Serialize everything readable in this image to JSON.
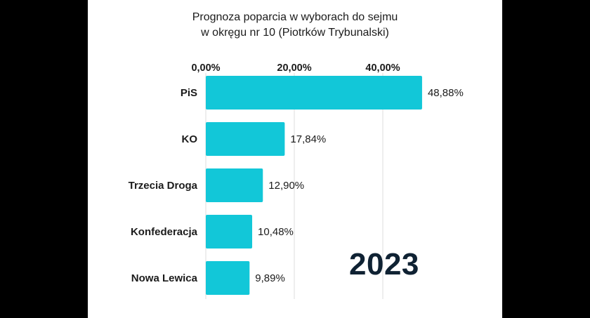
{
  "chart_data": {
    "type": "bar",
    "orientation": "horizontal",
    "title_lines": [
      "Prognoza poparcia w wyborach do sejmu",
      "w okręgu nr 10 (Piotrków Trybunalski)"
    ],
    "categories": [
      "PiS",
      "KO",
      "Trzecia Droga",
      "Konfederacja",
      "Nowa Lewica"
    ],
    "values": [
      48.88,
      17.84,
      12.9,
      10.48,
      9.89
    ],
    "value_labels": [
      "48,88%",
      "17,84%",
      "12,90%",
      "10,48%",
      "9,89%"
    ],
    "axis_ticks": [
      0,
      20,
      40
    ],
    "axis_tick_labels": [
      "0,00%",
      "20,00%",
      "40,00%"
    ],
    "axis_position": "top",
    "grid": true,
    "bar_color": "#12c7d8",
    "annotation": "2023"
  }
}
